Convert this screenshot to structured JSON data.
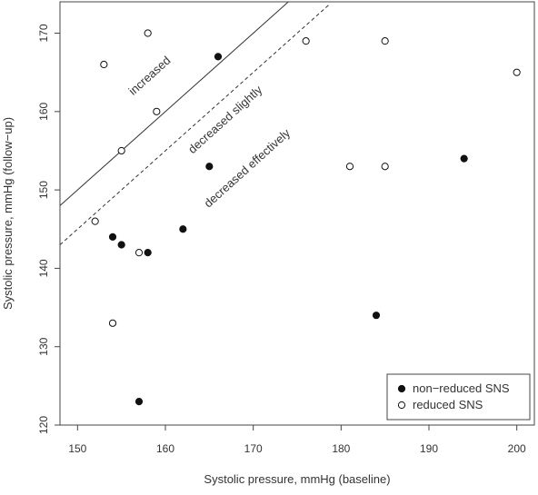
{
  "chart_data": {
    "type": "scatter",
    "title": "",
    "xlabel": "Systolic pressure, mmHg (baseline)",
    "ylabel": "Systolic pressure, mmHg (follow−up)",
    "xlim": [
      148,
      202
    ],
    "ylim": [
      120,
      174
    ],
    "x_ticks": [
      150,
      160,
      170,
      180,
      190,
      200
    ],
    "y_ticks": [
      120,
      130,
      140,
      150,
      160,
      170
    ],
    "grid": false,
    "legend_position": "bottom-right",
    "series": [
      {
        "name": "non−reduced SNS",
        "marker": "filled-circle",
        "color": "#111111",
        "points": [
          {
            "x": 154,
            "y": 144
          },
          {
            "x": 155,
            "y": 143
          },
          {
            "x": 157,
            "y": 123
          },
          {
            "x": 158,
            "y": 142
          },
          {
            "x": 162,
            "y": 145
          },
          {
            "x": 165,
            "y": 153
          },
          {
            "x": 166,
            "y": 167
          },
          {
            "x": 184,
            "y": 134
          },
          {
            "x": 194,
            "y": 154
          }
        ]
      },
      {
        "name": "reduced SNS",
        "marker": "open-circle",
        "color": "#111111",
        "points": [
          {
            "x": 152,
            "y": 146
          },
          {
            "x": 153,
            "y": 166
          },
          {
            "x": 154,
            "y": 133
          },
          {
            "x": 155,
            "y": 155
          },
          {
            "x": 157,
            "y": 142
          },
          {
            "x": 158,
            "y": 170
          },
          {
            "x": 159,
            "y": 160
          },
          {
            "x": 176,
            "y": 169
          },
          {
            "x": 181,
            "y": 153
          },
          {
            "x": 185,
            "y": 169
          },
          {
            "x": 185,
            "y": 153
          },
          {
            "x": 200,
            "y": 165
          }
        ]
      }
    ],
    "reference_lines": [
      {
        "style": "solid",
        "intercept": 0,
        "slope": 1,
        "x_range": [
          148,
          174
        ]
      },
      {
        "style": "dashed",
        "intercept": -5,
        "slope": 1,
        "x_range": [
          148,
          178.6
        ]
      }
    ],
    "annotations": [
      {
        "text": "increased",
        "x": 158.5,
        "y": 164.2
      },
      {
        "text": "decreased slightly",
        "x": 167.1,
        "y": 158.6
      },
      {
        "text": "decreased effectively",
        "x": 169.6,
        "y": 152.4
      }
    ]
  }
}
